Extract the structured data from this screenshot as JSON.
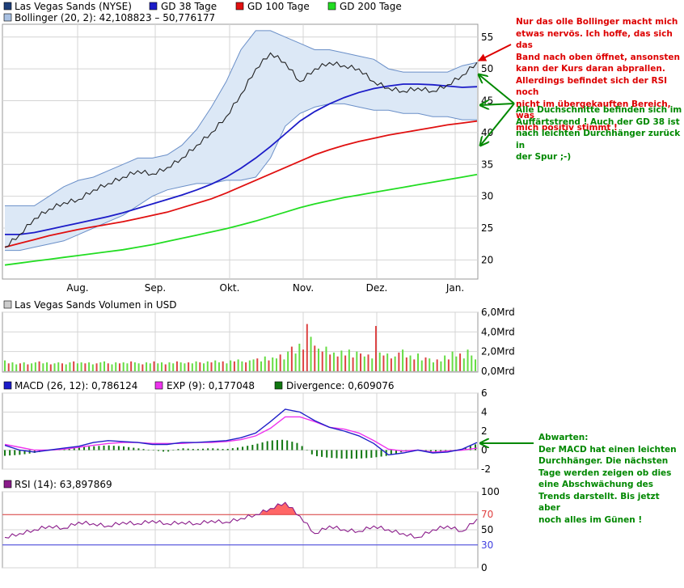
{
  "colors": {
    "price": "#222222",
    "gd38": "#1c1cc8",
    "gd100": "#e01010",
    "gd200": "#22dd22",
    "band_fill": "#dce8f6",
    "band_line": "#6a8fc8",
    "grid": "#d4d4d4",
    "vol_up": "#66dd44",
    "vol_down": "#dd4444",
    "macd": "#2020c8",
    "exp": "#ee33ee",
    "divergence": "#117711",
    "rsi": "#8a1b8a",
    "rsi70": "#e04040",
    "rsi30": "#4040e0",
    "rsi_fill": "#ff6666",
    "note_red": "#dd0000",
    "note_green": "#008800"
  },
  "legend": {
    "las_vegas_sands": "Las Vegas Sands (NYSE)",
    "gd38": "GD 38 Tage",
    "gd100": "GD 100 Tage",
    "gd200": "GD 200 Tage",
    "bollinger": "Bollinger (20, 2): 42,108823 – 50,776177",
    "volume": "Las Vegas Sands Volumen in USD",
    "macd": "MACD (26, 12): 0,786124",
    "exp": "EXP (9): 0,177048",
    "divergence": "Divergence: 0,609076",
    "rsi": "RSI (14): 63,897869"
  },
  "annotations": {
    "bollinger_note": "Nur das olle Bollinger macht mich\netwas nervös. Ich hoffe, das sich das\nBand nach oben öffnet, ansonsten\nkann der Kurs daran abprallen.\nAllerdings befindet sich der RSI noch\nnicht im übergekauften Bereich, was\nmich positiv stimmt !",
    "trend_note": "Alle Duchschnitte befinden sich im\nAuffärtstrend ! Auch der GD 38 ist\nnach leichten Durchhänger zurück in\nder Spur ;-)",
    "macd_note": "Abwarten:\nDer MACD hat einen leichten\nDurchhänger. Die nächsten\nTage werden zeigen ob dies\neine Abschwächung des\nTrends darstellt. Bis jetzt aber\nnoch alles im Günen !"
  },
  "chart_data": [
    {
      "type": "line",
      "title": "Las Vegas Sands (NYSE)",
      "months": [
        "Aug.",
        "Sep.",
        "Okt.",
        "Nov.",
        "Dez.",
        "Jan."
      ],
      "ylim": [
        17,
        57
      ],
      "yticks": [
        20,
        25,
        30,
        35,
        40,
        45,
        50,
        55
      ],
      "series": [
        {
          "name": "Las Vegas Sands (NYSE)",
          "key": "price",
          "values": [
            22,
            24,
            26.5,
            28,
            29,
            29.5,
            31,
            32,
            33,
            34,
            33.5,
            34.5,
            36,
            38,
            40,
            42.5,
            46,
            50,
            52.5,
            51,
            48,
            50,
            51,
            50.5,
            50,
            48,
            47,
            46.5,
            47,
            46.5,
            47.5,
            49,
            51
          ]
        },
        {
          "name": "GD 38 Tage",
          "key": "gd38",
          "values": [
            24,
            24,
            24.3,
            24.8,
            25.3,
            25.8,
            26.3,
            26.8,
            27.4,
            28.1,
            28.8,
            29.5,
            30.2,
            31,
            31.9,
            33,
            34.4,
            36,
            37.8,
            39.8,
            41.8,
            43.3,
            44.5,
            45.5,
            46.3,
            46.9,
            47.3,
            47.6,
            47.6,
            47.5,
            47.3,
            47.1,
            47.2
          ]
        },
        {
          "name": "GD 100 Tage",
          "key": "gd100",
          "values": [
            22,
            22.6,
            23.2,
            23.8,
            24.3,
            24.8,
            25.2,
            25.6,
            26,
            26.5,
            27,
            27.5,
            28.2,
            28.9,
            29.6,
            30.5,
            31.5,
            32.5,
            33.5,
            34.5,
            35.5,
            36.5,
            37.3,
            38,
            38.6,
            39.1,
            39.6,
            40,
            40.4,
            40.8,
            41.2,
            41.5,
            41.8
          ]
        },
        {
          "name": "GD 200 Tage",
          "key": "gd200",
          "values": [
            19.2,
            19.5,
            19.8,
            20.1,
            20.4,
            20.7,
            21,
            21.3,
            21.6,
            22,
            22.4,
            22.9,
            23.4,
            23.9,
            24.4,
            24.9,
            25.5,
            26.1,
            26.8,
            27.5,
            28.2,
            28.8,
            29.3,
            29.8,
            30.2,
            30.6,
            31,
            31.4,
            31.8,
            32.2,
            32.6,
            33,
            33.4
          ]
        },
        {
          "name": "Bollinger upper",
          "key": "boll_upper",
          "values": [
            28.5,
            28.5,
            28.5,
            30,
            31.5,
            32.5,
            33,
            34,
            35,
            36,
            36,
            36.5,
            38,
            40.5,
            44,
            48,
            53,
            56,
            56,
            55,
            54,
            53,
            53,
            52.5,
            52,
            51.5,
            50,
            49.5,
            49.5,
            49.5,
            49.5,
            50.5,
            51
          ]
        },
        {
          "name": "Bollinger lower",
          "key": "boll_lower",
          "values": [
            21.5,
            21.5,
            22,
            22.5,
            23,
            24,
            25,
            26,
            27,
            28.5,
            30,
            31,
            31.5,
            32,
            32,
            32.5,
            32.5,
            33,
            36,
            41,
            43,
            44,
            44.5,
            44.5,
            44,
            43.5,
            43.5,
            43,
            43,
            42.5,
            42.5,
            42,
            42
          ]
        }
      ]
    },
    {
      "type": "bar",
      "title": "Las Vegas Sands Volumen in USD",
      "ylim": [
        0,
        6
      ],
      "yticks": [
        0,
        2,
        4,
        6
      ],
      "ytick_labels": [
        "0,0Mrd",
        "2,0Mrd",
        "4,0Mrd",
        "6,0Mrd"
      ],
      "values": [
        1.1,
        0.8,
        0.9,
        0.7,
        0.8,
        0.9,
        0.7,
        0.8,
        0.9,
        1.0,
        0.8,
        0.9,
        0.7,
        0.8,
        0.9,
        0.8,
        0.7,
        0.9,
        1.0,
        0.8,
        0.9,
        0.8,
        0.9,
        0.7,
        0.8,
        0.9,
        1.0,
        0.8,
        0.7,
        0.9,
        0.8,
        0.9,
        0.8,
        1.0,
        0.9,
        0.8,
        0.7,
        0.9,
        0.8,
        1.0,
        0.8,
        0.9,
        0.7,
        0.9,
        0.8,
        1.0,
        0.9,
        0.8,
        0.9,
        0.8,
        1.0,
        0.9,
        0.8,
        1.0,
        0.9,
        1.1,
        0.9,
        1.0,
        0.8,
        1.1,
        1.0,
        1.2,
        1.0,
        0.9,
        1.1,
        1.2,
        1.3,
        1.0,
        1.5,
        1.1,
        1.4,
        1.3,
        1.7,
        1.2,
        2.0,
        2.5,
        1.8,
        2.8,
        2.2,
        4.8,
        3.5,
        2.6,
        2.3,
        2.0,
        2.5,
        1.7,
        1.9,
        1.5,
        2.1,
        1.6,
        2.2,
        1.4,
        2.0,
        1.8,
        1.5,
        1.7,
        1.3,
        4.6,
        1.9,
        1.6,
        1.8,
        1.3,
        1.5,
        1.9,
        2.2,
        1.4,
        1.6,
        1.2,
        1.8,
        1.1,
        1.4,
        1.3,
        0.9,
        1.2,
        1.0,
        1.6,
        1.2,
        2.0,
        1.5,
        1.8,
        1.3,
        2.2,
        1.6,
        1.2
      ],
      "up": [
        true,
        false,
        true,
        true,
        false,
        true,
        false,
        true,
        true,
        false,
        true,
        true,
        false,
        true,
        true,
        false,
        true,
        true,
        false,
        true,
        true,
        false,
        true,
        true,
        false,
        true,
        true,
        false,
        true,
        true,
        false,
        true,
        true,
        false,
        true,
        true,
        false,
        true,
        true,
        false,
        true,
        true,
        false,
        true,
        true,
        false,
        true,
        true,
        false,
        true,
        true,
        false,
        true,
        true,
        false,
        true,
        true,
        false,
        true,
        true,
        false,
        true,
        true,
        false,
        true,
        true,
        false,
        true,
        true,
        false,
        true,
        true,
        false,
        true,
        true,
        false,
        true,
        true,
        false,
        false,
        true,
        false,
        true,
        false,
        true,
        false,
        true,
        false,
        true,
        false,
        true,
        false,
        true,
        false,
        true,
        false,
        true,
        false,
        true,
        false,
        true,
        false,
        true,
        false,
        true,
        false,
        true,
        false,
        true,
        true,
        false,
        true,
        true,
        false,
        true,
        true,
        false,
        true,
        true,
        false,
        true,
        true,
        true,
        true
      ]
    },
    {
      "type": "line",
      "title": "MACD",
      "ylim": [
        -2,
        6
      ],
      "yticks": [
        -2,
        0,
        2,
        4,
        6
      ],
      "series": [
        {
          "name": "MACD (26, 12)",
          "key": "macd",
          "values": [
            0.5,
            0,
            -0.2,
            0,
            0.2,
            0.4,
            0.8,
            1.0,
            0.9,
            0.8,
            0.6,
            0.6,
            0.8,
            0.8,
            0.9,
            1.0,
            1.3,
            1.8,
            3.0,
            4.3,
            4.0,
            3.1,
            2.4,
            2.0,
            1.5,
            0.7,
            -0.5,
            -0.3,
            0,
            -0.3,
            -0.2,
            0.1,
            0.8
          ]
        },
        {
          "name": "EXP (9)",
          "key": "exp",
          "values": [
            0.6,
            0.3,
            0,
            0,
            0.1,
            0.3,
            0.5,
            0.7,
            0.8,
            0.8,
            0.7,
            0.7,
            0.7,
            0.8,
            0.8,
            0.9,
            1.1,
            1.5,
            2.3,
            3.5,
            3.5,
            3.0,
            2.4,
            2.2,
            1.8,
            1.0,
            0.1,
            -0.1,
            0,
            -0.2,
            -0.1,
            0,
            0.2
          ]
        },
        {
          "name": "Divergence (9)",
          "key": "divergence",
          "values": [
            -0.6,
            -0.5,
            -0.3,
            0,
            0.1,
            0.3,
            0.4,
            0.5,
            0.4,
            0.2,
            0,
            -0.2,
            0.2,
            0.1,
            0.2,
            0.1,
            0.3,
            0.6,
            1.0,
            1.1,
            0.7,
            -0.6,
            -0.8,
            -0.9,
            -0.9,
            -0.8,
            -0.6,
            -0.2,
            0,
            -0.2,
            -0.1,
            0.1,
            0.6
          ]
        }
      ]
    },
    {
      "type": "line",
      "title": "RSI (14)",
      "ylim": [
        0,
        100
      ],
      "yticks": [
        0,
        30,
        50,
        70,
        100
      ],
      "series": [
        {
          "name": "RSI (14)",
          "key": "rsi",
          "values": [
            40,
            45,
            50,
            55,
            52,
            60,
            58,
            55,
            60,
            58,
            62,
            58,
            60,
            58,
            62,
            60,
            65,
            70,
            78,
            86,
            68,
            45,
            55,
            50,
            48,
            55,
            50,
            45,
            40,
            50,
            55,
            48,
            64
          ]
        }
      ]
    }
  ]
}
